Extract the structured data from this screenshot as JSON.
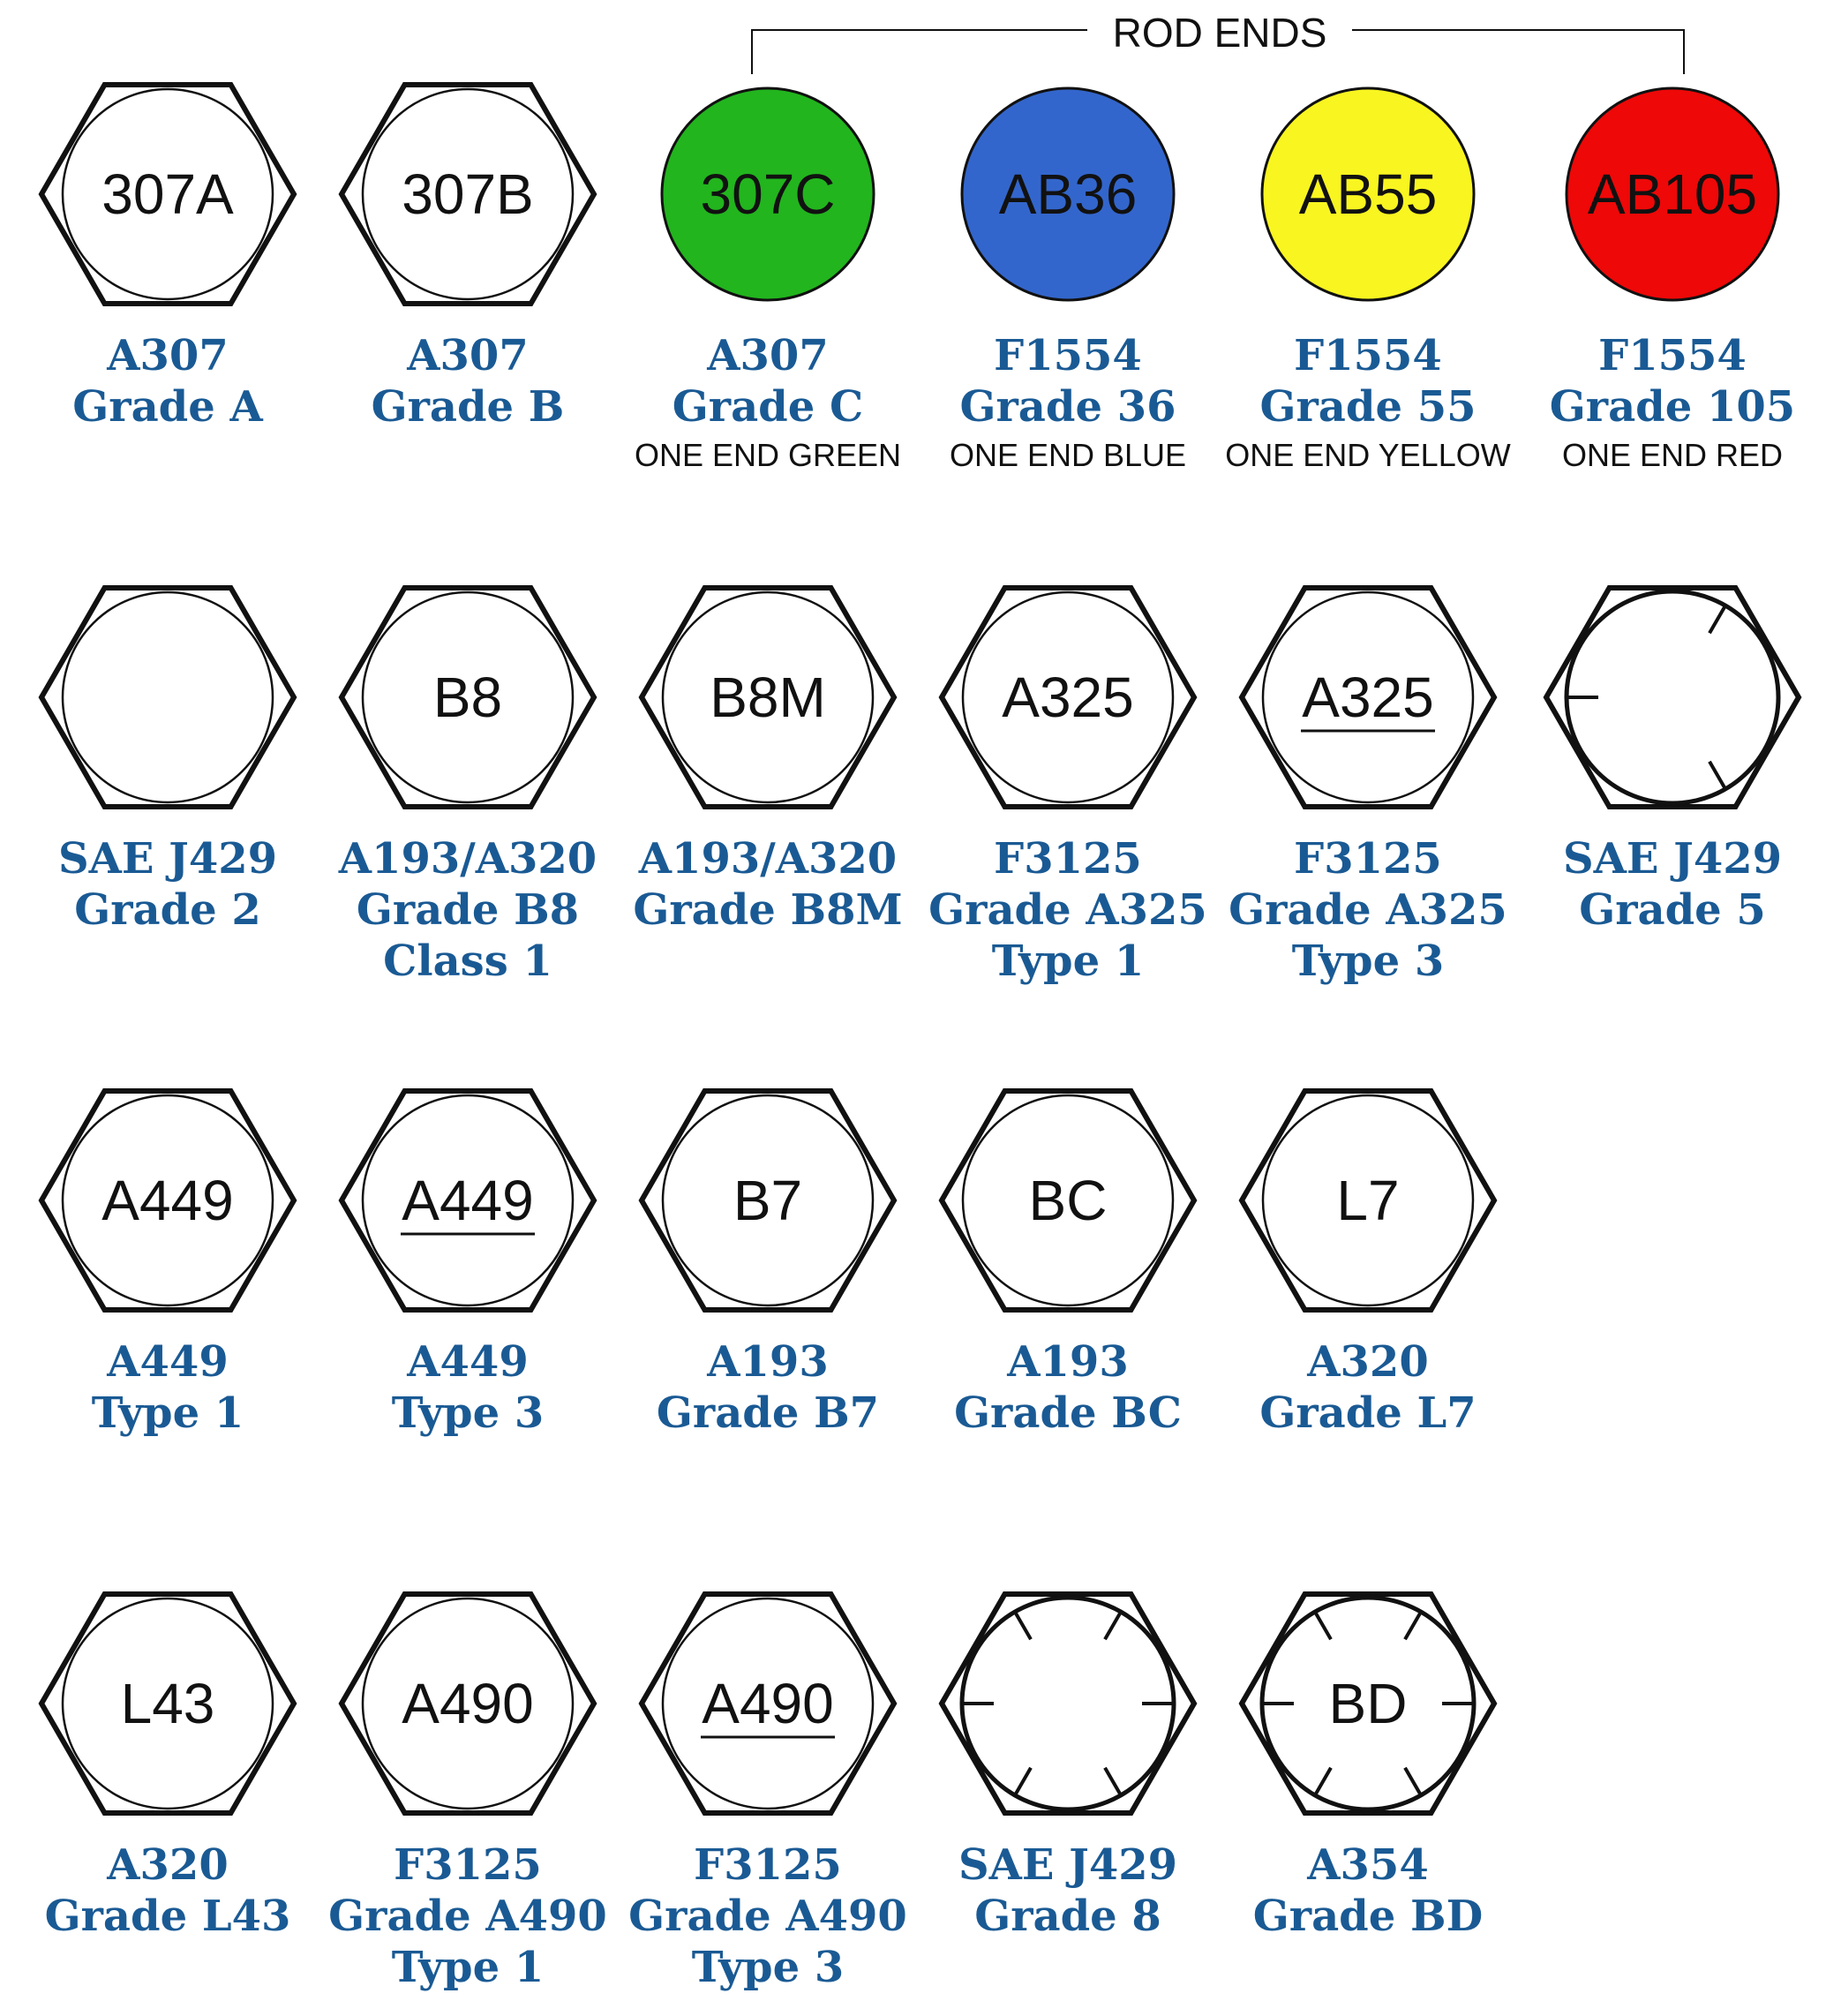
{
  "header": {
    "rod_ends_label": "ROD ENDS"
  },
  "colors": {
    "caption": "#1a5a94",
    "outline": "#111111",
    "green": "#22b51e",
    "blue": "#3366cc",
    "yellow": "#f9f520",
    "red": "#ee0808"
  },
  "rows": [
    [
      {
        "shape": "hex",
        "mark": "307A",
        "caption": [
          "A307",
          "Grade A"
        ]
      },
      {
        "shape": "hex",
        "mark": "307B",
        "caption": [
          "A307",
          "Grade B"
        ]
      },
      {
        "shape": "circle",
        "fill": "green",
        "mark": "307C",
        "caption": [
          "A307",
          "Grade C"
        ],
        "note": "ONE END GREEN"
      },
      {
        "shape": "circle",
        "fill": "blue",
        "mark": "AB36",
        "caption": [
          "F1554",
          "Grade 36"
        ],
        "note": "ONE END BLUE"
      },
      {
        "shape": "circle",
        "fill": "yellow",
        "mark": "AB55",
        "caption": [
          "F1554",
          "Grade 55"
        ],
        "note": "ONE END YELLOW"
      },
      {
        "shape": "circle",
        "fill": "red",
        "mark": "AB105",
        "caption": [
          "F1554",
          "Grade 105"
        ],
        "note": "ONE END RED"
      }
    ],
    [
      {
        "shape": "hex",
        "mark": "",
        "caption": [
          "SAE J429",
          "Grade 2"
        ]
      },
      {
        "shape": "hex",
        "mark": "B8",
        "caption": [
          "A193/A320",
          "Grade B8",
          "Class 1"
        ]
      },
      {
        "shape": "hex",
        "mark": "B8M",
        "caption": [
          "A193/A320",
          "Grade B8M"
        ]
      },
      {
        "shape": "hex",
        "mark": "A325",
        "caption": [
          "F3125",
          "Grade A325",
          "Type 1"
        ]
      },
      {
        "shape": "hex",
        "mark": "A325",
        "underline": true,
        "caption": [
          "F3125",
          "Grade A325",
          "Type 3"
        ]
      },
      {
        "shape": "hex",
        "radial": "three",
        "mark": "",
        "caption": [
          "SAE J429",
          "Grade 5"
        ]
      }
    ],
    [
      {
        "shape": "hex",
        "mark": "A449",
        "caption": [
          "A449",
          "Type 1"
        ]
      },
      {
        "shape": "hex",
        "mark": "A449",
        "underline": true,
        "caption": [
          "A449",
          "Type 3"
        ]
      },
      {
        "shape": "hex",
        "mark": "B7",
        "caption": [
          "A193",
          "Grade B7"
        ]
      },
      {
        "shape": "hex",
        "mark": "BC",
        "caption": [
          "A193",
          "Grade BC"
        ]
      },
      {
        "shape": "hex",
        "mark": "L7",
        "caption": [
          "A320",
          "Grade L7"
        ]
      }
    ],
    [
      {
        "shape": "hex",
        "mark": "L43",
        "caption": [
          "A320",
          "Grade L43"
        ]
      },
      {
        "shape": "hex",
        "mark": "A490",
        "caption": [
          "F3125",
          "Grade A490",
          "Type 1"
        ]
      },
      {
        "shape": "hex",
        "mark": "A490",
        "underline": true,
        "caption": [
          "F3125",
          "Grade A490",
          "Type 3"
        ]
      },
      {
        "shape": "hex",
        "radial": "six",
        "mark": "",
        "caption": [
          "SAE J429",
          "Grade 8"
        ]
      },
      {
        "shape": "hex",
        "radial": "six",
        "mark": "BD",
        "caption": [
          "A354",
          "Grade BD"
        ]
      }
    ]
  ]
}
